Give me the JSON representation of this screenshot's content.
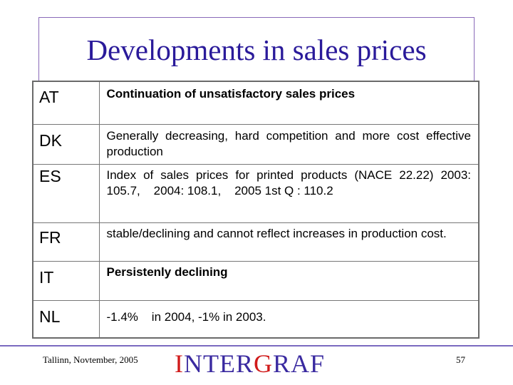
{
  "slide": {
    "title": "Developments in sales prices"
  },
  "rows": [
    {
      "country": "AT",
      "text": "Continuation of unsatisfactory sales prices",
      "bold": true
    },
    {
      "country": "DK",
      "text": "Generally decreasing, hard competition and more cost effective production",
      "bold": false
    },
    {
      "country": "ES",
      "text": "Index of sales prices for printed products (NACE 22.22) 2003: 105.7,    2004: 108.1,    2005 1st Q : 110.2",
      "bold": false
    },
    {
      "country": "FR",
      "text": "stable/declining and cannot reflect increases in production cost.",
      "bold": false
    },
    {
      "country": "IT",
      "text": "Persistenly declining",
      "bold": true
    },
    {
      "country": "NL",
      "text": "-1.4%    in 2004, -1% in 2003.",
      "bold": false
    }
  ],
  "footer": {
    "location_date": "Tallinn, Novtember, 2005",
    "logo_text_1": "I",
    "logo_text_2": "NTER",
    "logo_text_3": "G",
    "logo_text_4": "RAF",
    "page_number": "57"
  }
}
